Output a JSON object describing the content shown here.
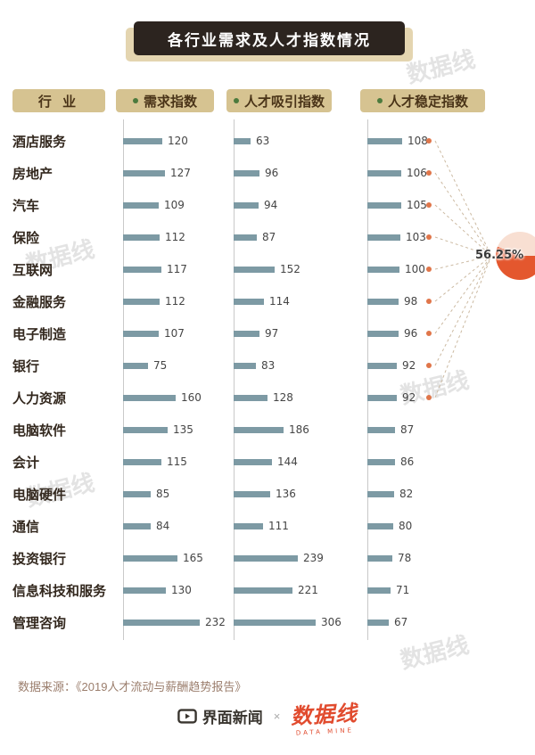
{
  "title": "各行业需求及人才指数情况",
  "headers": {
    "industry": "行 业"
  },
  "chart_data": {
    "type": "bar",
    "orientation": "horizontal",
    "categories": [
      "酒店服务",
      "房地产",
      "汽车",
      "保险",
      "互联网",
      "金融服务",
      "电子制造",
      "银行",
      "人力资源",
      "电脑软件",
      "会计",
      "电脑硬件",
      "通信",
      "投资银行",
      "信息科技和服务",
      "管理咨询"
    ],
    "series": [
      {
        "name": "需求指数",
        "values": [
          120,
          127,
          109,
          112,
          117,
          112,
          107,
          75,
          160,
          135,
          115,
          85,
          84,
          165,
          130,
          232
        ]
      },
      {
        "name": "人才吸引指数",
        "values": [
          63,
          96,
          94,
          87,
          152,
          114,
          97,
          83,
          128,
          186,
          144,
          136,
          111,
          239,
          221,
          306
        ]
      },
      {
        "name": "人才稳定指数",
        "values": [
          108,
          106,
          105,
          103,
          100,
          98,
          96,
          92,
          92,
          87,
          86,
          82,
          80,
          78,
          71,
          67
        ]
      }
    ],
    "highlight": {
      "label": "56.25%",
      "value_pct": 56.25,
      "marked_rows": 9
    },
    "title": "各行业需求及人才指数情况",
    "legend_position": "top",
    "grid": false
  },
  "footer": {
    "source": "数据来源：《2019人才流动与薪酬趋势报告》"
  },
  "branding": {
    "left_logo": "界面新闻",
    "separator": "×",
    "right_logo": "数据线",
    "right_logo_sub": "DATA MINE"
  },
  "watermark": "数据线",
  "colors": {
    "bar": "#7d9aa4",
    "header_bg": "#d6c391",
    "header_text": "#4a3418",
    "title_bg": "#2c241f",
    "title_shadow": "#e4d5b0",
    "accent_orange": "#e4572e",
    "dot_orange": "#e0764a",
    "pie_light": "#f8dfd2",
    "header_dot_green": "#4c7a3d"
  }
}
